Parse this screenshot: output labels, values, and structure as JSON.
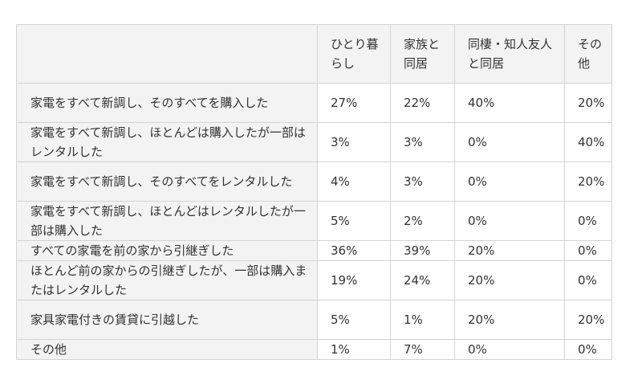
{
  "table": {
    "headers": [
      "",
      "ひとり暮らし",
      "家族と同居",
      "同棲・知人友人と同居",
      "その他"
    ],
    "rows": [
      {
        "label": "家電をすべて新調し、そのすべてを購入した",
        "values": [
          "27%",
          "22%",
          "40%",
          "20%"
        ]
      },
      {
        "label": "家電をすべて新調し、ほとんどは購入したが一部はレンタルした",
        "values": [
          "3%",
          "3%",
          "0%",
          "40%"
        ]
      },
      {
        "label": "家電をすべて新調し、そのすべてをレンタルした",
        "values": [
          "4%",
          "3%",
          "0%",
          "20%"
        ]
      },
      {
        "label": "家電をすべて新調し、ほとんどはレンタルしたが一部は購入した",
        "values": [
          "5%",
          "2%",
          "0%",
          "0%"
        ]
      },
      {
        "label": "すべての家電を前の家から引継ぎした",
        "values": [
          "36%",
          "39%",
          "20%",
          "0%"
        ]
      },
      {
        "label": "ほとんど前の家からの引継ぎしたが、一部は購入またはレンタルした",
        "values": [
          "19%",
          "24%",
          "20%",
          "0%"
        ]
      },
      {
        "label": "家具家電付きの賃貸に引越した",
        "values": [
          "5%",
          "1%",
          "20%",
          "20%"
        ]
      },
      {
        "label": "その他",
        "values": [
          "1%",
          "7%",
          "0%",
          "0%"
        ]
      }
    ]
  }
}
